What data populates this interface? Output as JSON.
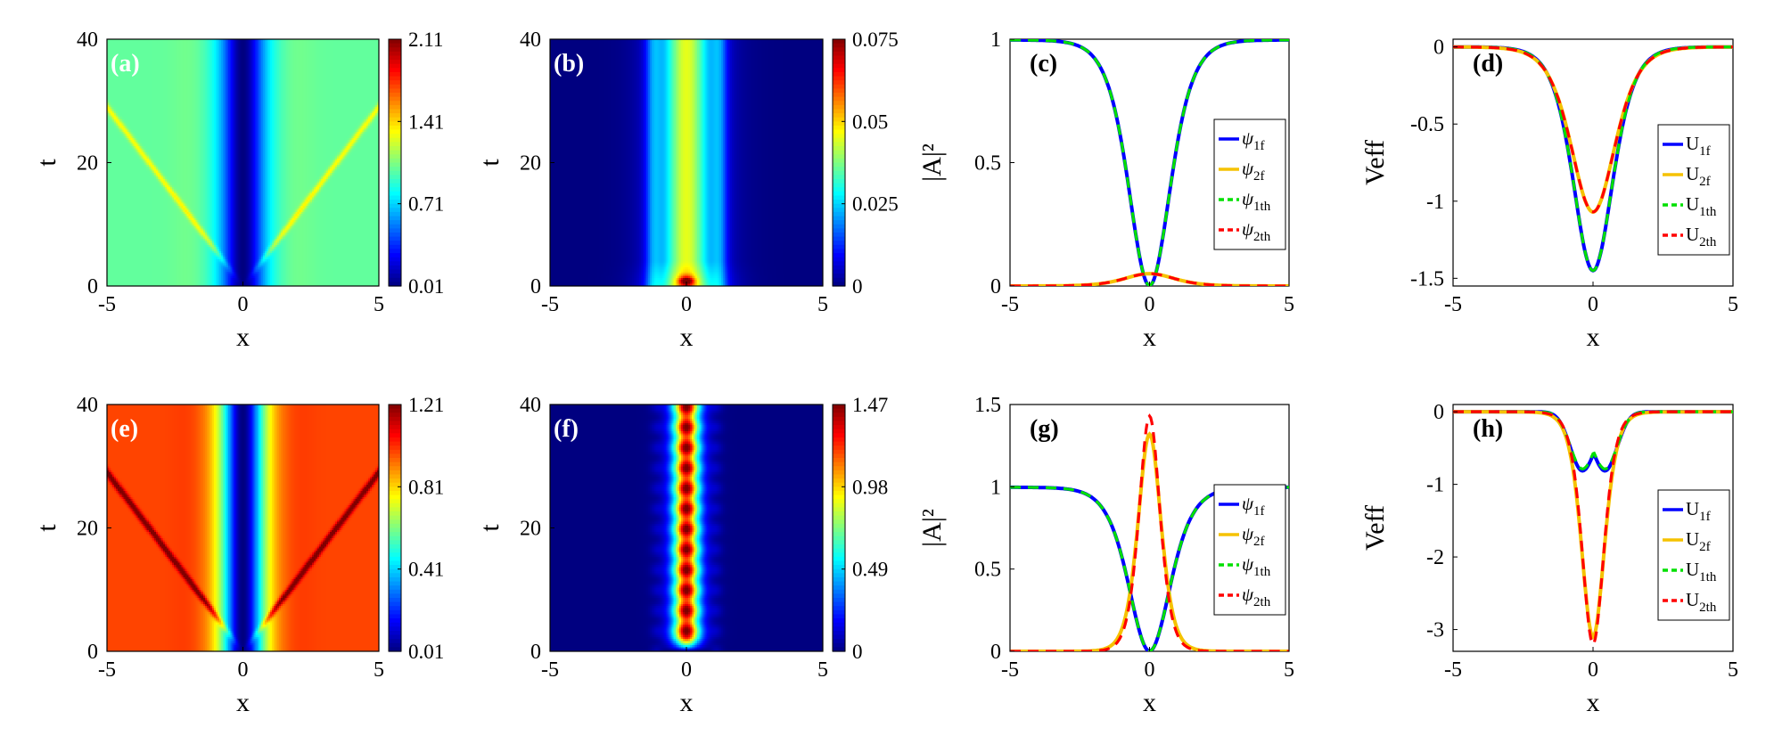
{
  "figure": {
    "panel_count": 8
  },
  "chart_data": [
    {
      "panel": "(a)",
      "type": "heatmap",
      "xlabel": "x",
      "ylabel": "t",
      "xlim": [
        -5,
        5
      ],
      "ylim": [
        0,
        40
      ],
      "xticks": [
        "-5",
        "0",
        "5"
      ],
      "yticks": [
        "0",
        "20",
        "40"
      ],
      "colorbar": {
        "min": 0.01,
        "max": 2.11,
        "ticks": [
          "2.11",
          "1.41",
          "0.71",
          "0.01"
        ]
      },
      "field": {
        "kind": "dark",
        "background": 1.0,
        "center": 0.01,
        "core_width": 0.75,
        "wing_amp": 0.6,
        "wing_width": 2.5,
        "front_slope": 5.8,
        "front_amp": 1.3
      }
    },
    {
      "panel": "(b)",
      "type": "heatmap",
      "xlabel": "x",
      "ylabel": "t",
      "xlim": [
        -5,
        5
      ],
      "ylim": [
        0,
        40
      ],
      "xticks": [
        "-5",
        "0",
        "5"
      ],
      "yticks": [
        "0",
        "20",
        "40"
      ],
      "colorbar": {
        "min": 0,
        "max": 0.075,
        "ticks": [
          "0.075",
          "0.05",
          "0.025",
          "0"
        ]
      },
      "field": {
        "kind": "bright",
        "peak": 0.045,
        "width": 0.9,
        "ring": 0.012,
        "ring_width": 1.4,
        "spot_peak": 0.075,
        "spot_t": 0.8
      }
    },
    {
      "panel": "(c)",
      "type": "line",
      "xlabel": "x",
      "ylabel": "|A|²",
      "xlim": [
        -5,
        5
      ],
      "ylim": [
        0,
        1
      ],
      "xticks": [
        "-5",
        "0",
        "5"
      ],
      "yticks": [
        "0",
        "0.5",
        "1"
      ],
      "series": [
        {
          "name": "ψ1f",
          "label_main": "ψ",
          "label_sub": "1f",
          "color": "#0000ff",
          "dash": "solid",
          "shape": "dark",
          "amp": 1,
          "width": 1.0
        },
        {
          "name": "ψ2f",
          "label_main": "ψ",
          "label_sub": "2f",
          "color": "#f5c200",
          "dash": "solid",
          "shape": "bright",
          "amp": 0.05,
          "width": 1.2
        },
        {
          "name": "ψ1th",
          "label_main": "ψ",
          "label_sub": "1th",
          "color": "#00e000",
          "dash": "dash",
          "shape": "dark",
          "amp": 1,
          "width": 1.0
        },
        {
          "name": "ψ2th",
          "label_main": "ψ",
          "label_sub": "2th",
          "color": "#ff0000",
          "dash": "dash",
          "shape": "bright",
          "amp": 0.05,
          "width": 1.2
        }
      ]
    },
    {
      "panel": "(d)",
      "type": "line",
      "xlabel": "x",
      "ylabel": "Veff",
      "xlim": [
        -5,
        5
      ],
      "ylim": [
        -1.55,
        0.05
      ],
      "xticks": [
        "-5",
        "0",
        "5"
      ],
      "yticks": [
        "-1.5",
        "-1",
        "-0.5",
        "0"
      ],
      "series": [
        {
          "name": "U1f",
          "label_main": "U",
          "label_sub": "1f",
          "color": "#0000ff",
          "dash": "solid",
          "shape": "well",
          "amp": -1.45,
          "width": 0.95
        },
        {
          "name": "U2f",
          "label_main": "U",
          "label_sub": "2f",
          "color": "#f5c200",
          "dash": "solid",
          "shape": "well",
          "amp": -1.07,
          "width": 1.05
        },
        {
          "name": "U1th",
          "label_main": "U",
          "label_sub": "1th",
          "color": "#00e000",
          "dash": "dash",
          "shape": "well",
          "amp": -1.45,
          "width": 0.95
        },
        {
          "name": "U2th",
          "label_main": "U",
          "label_sub": "2th",
          "color": "#ff0000",
          "dash": "dash",
          "shape": "well",
          "amp": -1.07,
          "width": 1.05
        }
      ]
    },
    {
      "panel": "(e)",
      "type": "heatmap",
      "xlabel": "x",
      "ylabel": "t",
      "xlim": [
        -5,
        5
      ],
      "ylim": [
        0,
        40
      ],
      "xticks": [
        "-5",
        "0",
        "5"
      ],
      "yticks": [
        "0",
        "20",
        "40"
      ],
      "colorbar": {
        "min": 0.01,
        "max": 1.21,
        "ticks": [
          "1.21",
          "0.81",
          "0.41",
          "0.01"
        ]
      },
      "field": {
        "kind": "dark",
        "background": 0.98,
        "center": 0.01,
        "core_width": 0.75,
        "wing_amp": 0.3,
        "wing_width": 2.2,
        "front_slope": 5.8,
        "front_amp": 1.2
      }
    },
    {
      "panel": "(f)",
      "type": "heatmap",
      "xlabel": "x",
      "ylabel": "t",
      "xlim": [
        -5,
        5
      ],
      "ylim": [
        0,
        40
      ],
      "xticks": [
        "-5",
        "0",
        "5"
      ],
      "yticks": [
        "0",
        "20",
        "40"
      ],
      "colorbar": {
        "min": 0,
        "max": 1.47,
        "ticks": [
          "1.47",
          "0.98",
          "0.49",
          "0"
        ]
      },
      "field": {
        "kind": "breather",
        "peak": 1.35,
        "width": 0.45,
        "mod_amp": 0.12,
        "period": 3.3
      }
    },
    {
      "panel": "(g)",
      "type": "line",
      "xlabel": "x",
      "ylabel": "|A|²",
      "xlim": [
        -5,
        5
      ],
      "ylim": [
        0,
        1.5
      ],
      "xticks": [
        "-5",
        "0",
        "5"
      ],
      "yticks": [
        "0",
        "0.5",
        "1",
        "1.5"
      ],
      "series": [
        {
          "name": "ψ1f",
          "label_main": "ψ",
          "label_sub": "1f",
          "color": "#0000ff",
          "dash": "solid",
          "shape": "dark",
          "amp": 1,
          "width": 1.0
        },
        {
          "name": "ψ2f",
          "label_main": "ψ",
          "label_sub": "2f",
          "color": "#f5c200",
          "dash": "solid",
          "shape": "bright",
          "amp": 1.32,
          "width": 0.55
        },
        {
          "name": "ψ1th",
          "label_main": "ψ",
          "label_sub": "1th",
          "color": "#00e000",
          "dash": "dash",
          "shape": "dark",
          "amp": 1,
          "width": 1.0
        },
        {
          "name": "ψ2th",
          "label_main": "ψ",
          "label_sub": "2th",
          "color": "#ff0000",
          "dash": "dash",
          "shape": "bright",
          "amp": 1.43,
          "width": 0.5
        }
      ]
    },
    {
      "panel": "(h)",
      "type": "line",
      "xlabel": "x",
      "ylabel": "Veff",
      "xlim": [
        -5,
        5
      ],
      "ylim": [
        -3.3,
        0.1
      ],
      "xticks": [
        "-5",
        "0",
        "5"
      ],
      "yticks": [
        "-3",
        "-2",
        "-1",
        "0"
      ],
      "series": [
        {
          "name": "U1f",
          "label_main": "U",
          "label_sub": "1f",
          "color": "#0000ff",
          "dash": "solid",
          "shape": "double",
          "amp": -0.62,
          "width": 0.9
        },
        {
          "name": "U2f",
          "label_main": "U",
          "label_sub": "2f",
          "color": "#f5c200",
          "dash": "solid",
          "shape": "well",
          "amp": -3.1,
          "width": 0.55
        },
        {
          "name": "U1th",
          "label_main": "U",
          "label_sub": "1th",
          "color": "#00e000",
          "dash": "dash",
          "shape": "double",
          "amp": -0.6,
          "width": 0.9
        },
        {
          "name": "U2th",
          "label_main": "U",
          "label_sub": "2th",
          "color": "#ff0000",
          "dash": "dash",
          "shape": "well",
          "amp": -3.2,
          "width": 0.52
        }
      ]
    }
  ]
}
